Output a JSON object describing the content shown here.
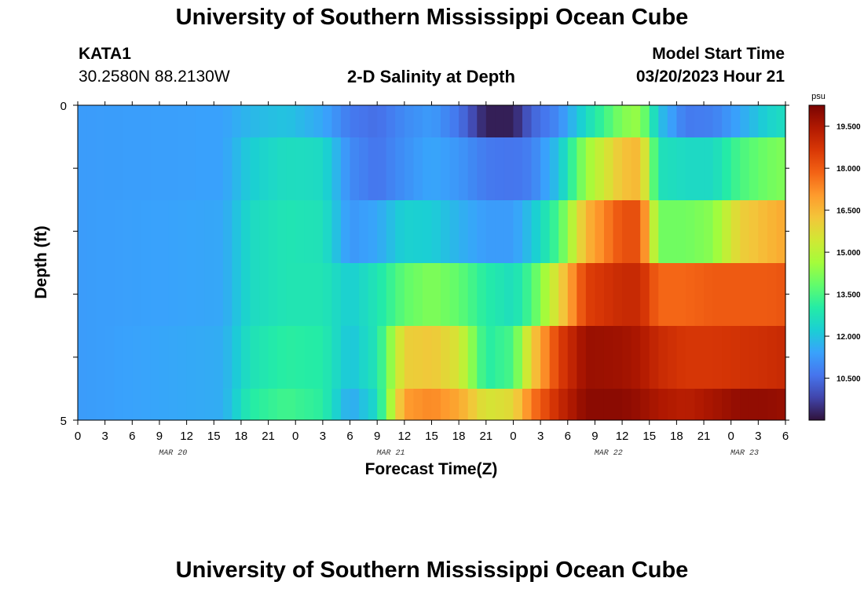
{
  "page": {
    "title": "University of Southern Mississippi Ocean Cube",
    "footer_title": "University of Southern Mississippi Ocean Cube",
    "station_id": "KATA1",
    "station_coords": "30.2580N  88.2130W",
    "subtitle": "2-D Salinity at Depth",
    "model_start_label": "Model Start Time",
    "model_start_value": "03/20/2023 Hour 21"
  },
  "chart_data": {
    "type": "heatmap",
    "title": "2-D Salinity at Depth",
    "xlabel": "Forecast Time(Z)",
    "ylabel": "Depth (ft)",
    "x_tick_labels": [
      "0",
      "3",
      "6",
      "9",
      "12",
      "15",
      "18",
      "21",
      "0",
      "3",
      "6",
      "9",
      "12",
      "15",
      "18",
      "21",
      "0",
      "3",
      "6",
      "9",
      "12",
      "15",
      "18",
      "21",
      "0",
      "3",
      "6"
    ],
    "date_labels": [
      {
        "text": "MAR 20",
        "at_hour": 10.5
      },
      {
        "text": "MAR 21",
        "at_hour": 34.5
      },
      {
        "text": "MAR 22",
        "at_hour": 58.5
      },
      {
        "text": "MAR 23",
        "at_hour": 73.5
      }
    ],
    "x_hours_range": [
      0,
      78
    ],
    "y_tick_labels": [
      "0",
      "5"
    ],
    "ylim": [
      0,
      5
    ],
    "depth_layers": 5,
    "colorbar": {
      "unit": "psu",
      "min": 9.0,
      "max": 20.25,
      "tick_labels": [
        "19.500",
        "18.000",
        "16.500",
        "15.000",
        "13.500",
        "12.000",
        "10.500"
      ],
      "tick_values": [
        19.5,
        18.0,
        16.5,
        15.0,
        13.5,
        12.0,
        10.5
      ],
      "colors": [
        "#30123b",
        "#4145ab",
        "#4675ed",
        "#39a2fc",
        "#1bcfd4",
        "#24eca6",
        "#61fc6c",
        "#a4fc3b",
        "#d1e834",
        "#f3c63a",
        "#fe9b2d",
        "#f36315",
        "#d93806",
        "#b11901",
        "#7a0402"
      ]
    },
    "key_frames": [
      {
        "hour": 0,
        "values": [
          11.3,
          11.3,
          11.3,
          11.3,
          11.3,
          11.3
        ]
      },
      {
        "hour": 16,
        "values": [
          11.4,
          11.4,
          11.5,
          11.5,
          11.6,
          11.6
        ]
      },
      {
        "hour": 19,
        "values": [
          11.8,
          12.2,
          12.5,
          12.5,
          12.7,
          13.0
        ]
      },
      {
        "hour": 23,
        "values": [
          12.0,
          12.6,
          12.8,
          12.8,
          13.1,
          13.4
        ]
      },
      {
        "hour": 27,
        "values": [
          11.5,
          12.5,
          12.7,
          12.8,
          13.0,
          13.1
        ]
      },
      {
        "hour": 30,
        "values": [
          10.7,
          11.0,
          11.2,
          12.2,
          12.0,
          11.5
        ]
      },
      {
        "hour": 33,
        "values": [
          10.5,
          10.6,
          11.5,
          12.8,
          12.8,
          12.5
        ]
      },
      {
        "hour": 36,
        "values": [
          11.0,
          11.1,
          12.3,
          13.8,
          16.0,
          17.0
        ]
      },
      {
        "hour": 39,
        "values": [
          11.3,
          11.5,
          12.2,
          14.2,
          16.2,
          17.3
        ]
      },
      {
        "hour": 42,
        "values": [
          10.6,
          11.2,
          11.7,
          13.8,
          15.5,
          16.8
        ]
      },
      {
        "hour": 45,
        "values": [
          9.2,
          10.7,
          11.3,
          13.0,
          13.0,
          15.5
        ]
      },
      {
        "hour": 48,
        "values": [
          9.2,
          10.6,
          11.3,
          12.6,
          13.5,
          15.8
        ]
      },
      {
        "hour": 50,
        "values": [
          10.3,
          10.8,
          12.0,
          13.5,
          16.0,
          17.5
        ]
      },
      {
        "hour": 53,
        "values": [
          11.0,
          12.0,
          13.5,
          15.8,
          18.5,
          19.0
        ]
      },
      {
        "hour": 56,
        "values": [
          12.5,
          14.5,
          16.5,
          18.5,
          19.8,
          20.0
        ]
      },
      {
        "hour": 60,
        "values": [
          14.2,
          16.3,
          18.2,
          19.0,
          19.7,
          20.0
        ]
      },
      {
        "hour": 62,
        "values": [
          14.5,
          16.5,
          18.2,
          19.0,
          19.5,
          19.8
        ]
      },
      {
        "hour": 64,
        "values": [
          12.0,
          12.7,
          14.0,
          17.8,
          19.0,
          19.5
        ]
      },
      {
        "hour": 67,
        "values": [
          10.7,
          12.5,
          14.0,
          17.8,
          18.7,
          19.3
        ]
      },
      {
        "hour": 70,
        "values": [
          10.8,
          12.5,
          14.3,
          18.0,
          18.7,
          19.6
        ]
      },
      {
        "hour": 73,
        "values": [
          11.5,
          13.5,
          16.0,
          18.0,
          18.8,
          19.9
        ]
      },
      {
        "hour": 76,
        "values": [
          12.3,
          14.0,
          16.5,
          18.0,
          18.9,
          19.9
        ]
      },
      {
        "hour": 78,
        "values": [
          12.6,
          14.2,
          16.8,
          18.1,
          19.0,
          19.8
        ]
      }
    ]
  }
}
